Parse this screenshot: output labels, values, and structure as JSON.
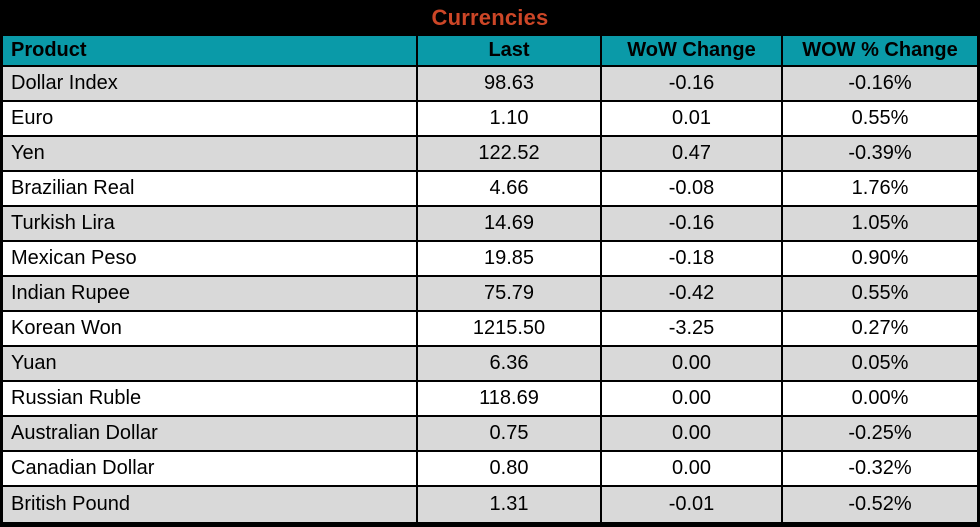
{
  "colors": {
    "title_text": "#cc4627",
    "header_bg": "#0a9aa8",
    "row_alt_bg": "#d9d9d9",
    "row_bg": "#ffffff",
    "border": "#000000"
  },
  "chart_data": {
    "type": "table",
    "title": "Currencies",
    "columns": [
      "Product",
      "Last",
      "WoW Change",
      "WOW % Change"
    ],
    "rows": [
      {
        "product": "Dollar Index",
        "last": "98.63",
        "wow_change": "-0.16",
        "wow_pct_change": "-0.16%"
      },
      {
        "product": "Euro",
        "last": "1.10",
        "wow_change": "0.01",
        "wow_pct_change": "0.55%"
      },
      {
        "product": "Yen",
        "last": "122.52",
        "wow_change": "0.47",
        "wow_pct_change": "-0.39%"
      },
      {
        "product": "Brazilian Real",
        "last": "4.66",
        "wow_change": "-0.08",
        "wow_pct_change": "1.76%"
      },
      {
        "product": "Turkish Lira",
        "last": "14.69",
        "wow_change": "-0.16",
        "wow_pct_change": "1.05%"
      },
      {
        "product": "Mexican Peso",
        "last": "19.85",
        "wow_change": "-0.18",
        "wow_pct_change": "0.90%"
      },
      {
        "product": "Indian Rupee",
        "last": "75.79",
        "wow_change": "-0.42",
        "wow_pct_change": "0.55%"
      },
      {
        "product": "Korean Won",
        "last": "1215.50",
        "wow_change": "-3.25",
        "wow_pct_change": "0.27%"
      },
      {
        "product": "Yuan",
        "last": "6.36",
        "wow_change": "0.00",
        "wow_pct_change": "0.05%"
      },
      {
        "product": "Russian Ruble",
        "last": "118.69",
        "wow_change": "0.00",
        "wow_pct_change": "0.00%"
      },
      {
        "product": "Australian Dollar",
        "last": "0.75",
        "wow_change": "0.00",
        "wow_pct_change": "-0.25%"
      },
      {
        "product": "Canadian Dollar",
        "last": "0.80",
        "wow_change": "0.00",
        "wow_pct_change": "-0.32%"
      },
      {
        "product": "British Pound",
        "last": "1.31",
        "wow_change": "-0.01",
        "wow_pct_change": "-0.52%"
      }
    ]
  }
}
